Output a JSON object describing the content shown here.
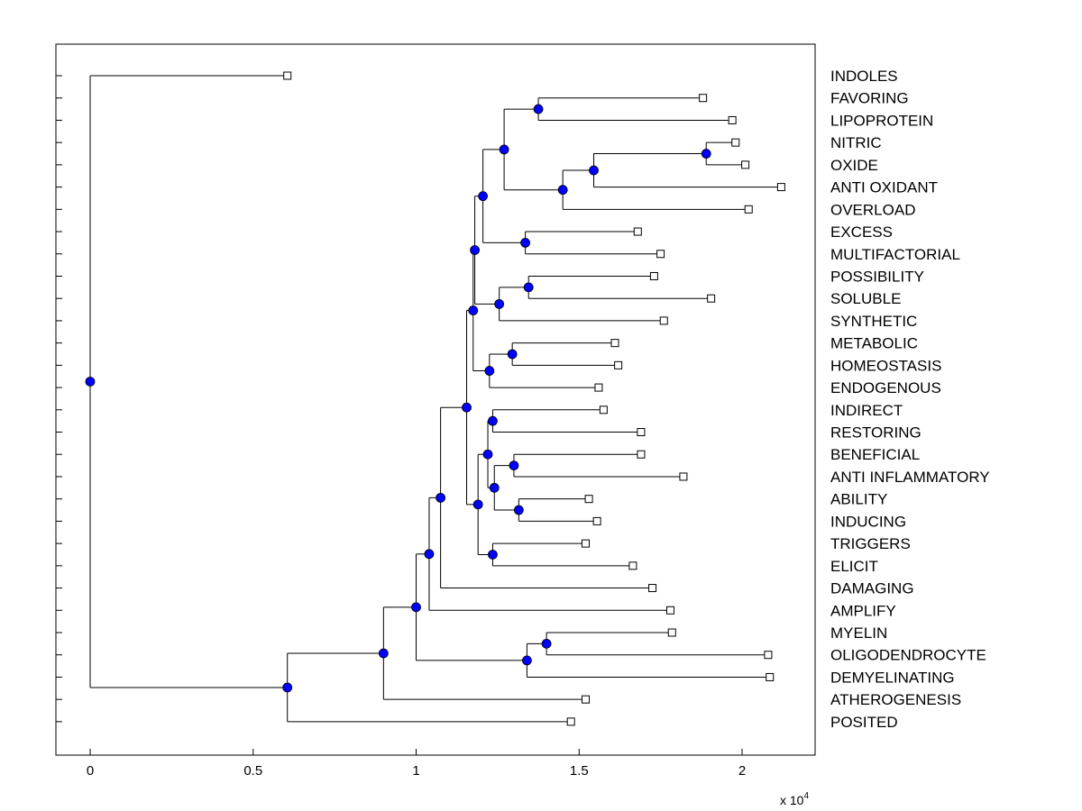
{
  "chart_data": {
    "type": "dendrogram",
    "orientation": "horizontal",
    "title": "",
    "xlabel": "",
    "ylabel": "",
    "xlim": [
      -1000,
      22500
    ],
    "x_ticks": [
      0,
      5000,
      10000,
      15000,
      20000
    ],
    "x_tick_labels": [
      "0",
      "0.5",
      "1",
      "1.5",
      "2"
    ],
    "x_multiplier_text": "x 10",
    "x_multiplier_exp": "4",
    "grid": false,
    "colors": {
      "node": "#0000ff",
      "leaf_fill": "#ffffff",
      "line": "#000000"
    },
    "leaves": [
      {
        "label": "INDOLES",
        "x": 6050
      },
      {
        "label": "FAVORING",
        "x": 18800
      },
      {
        "label": "LIPOPROTEIN",
        "x": 19700
      },
      {
        "label": "NITRIC",
        "x": 19800
      },
      {
        "label": "OXIDE",
        "x": 20100
      },
      {
        "label": "ANTI OXIDANT",
        "x": 21200
      },
      {
        "label": "OVERLOAD",
        "x": 20200
      },
      {
        "label": "EXCESS",
        "x": 16800
      },
      {
        "label": "MULTIFACTORIAL",
        "x": 17500
      },
      {
        "label": "POSSIBILITY",
        "x": 17300
      },
      {
        "label": "SOLUBLE",
        "x": 19050
      },
      {
        "label": "SYNTHETIC",
        "x": 17600
      },
      {
        "label": "METABOLIC",
        "x": 16100
      },
      {
        "label": "HOMEOSTASIS",
        "x": 16200
      },
      {
        "label": "ENDOGENOUS",
        "x": 15600
      },
      {
        "label": "INDIRECT",
        "x": 15750
      },
      {
        "label": "RESTORING",
        "x": 16900
      },
      {
        "label": "BENEFICIAL",
        "x": 16900
      },
      {
        "label": "ANTI INFLAMMATORY",
        "x": 18200
      },
      {
        "label": "ABILITY",
        "x": 15300
      },
      {
        "label": "INDUCING",
        "x": 15550
      },
      {
        "label": "TRIGGERS",
        "x": 15200
      },
      {
        "label": "ELICIT",
        "x": 16650
      },
      {
        "label": "DAMAGING",
        "x": 17250
      },
      {
        "label": "AMPLIFY",
        "x": 17800
      },
      {
        "label": "MYELIN",
        "x": 17850
      },
      {
        "label": "OLIGODENDROCYTE",
        "x": 20800
      },
      {
        "label": "DEMYELINATING",
        "x": 20850
      },
      {
        "label": "ATHEROGENESIS",
        "x": 15200
      },
      {
        "label": "POSITED",
        "x": 14750
      }
    ],
    "merges": [
      {
        "id": "a",
        "x": 13750,
        "children": [
          "L1",
          "L2"
        ]
      },
      {
        "id": "b",
        "x": 18900,
        "children": [
          "L3",
          "L4"
        ]
      },
      {
        "id": "c",
        "x": 15450,
        "children": [
          "b",
          "L5"
        ]
      },
      {
        "id": "d",
        "x": 14500,
        "children": [
          "c",
          "L6"
        ]
      },
      {
        "id": "e",
        "x": 12700,
        "children": [
          "a",
          "d"
        ]
      },
      {
        "id": "f",
        "x": 13350,
        "children": [
          "L7",
          "L8"
        ]
      },
      {
        "id": "g",
        "x": 12050,
        "children": [
          "e",
          "f"
        ]
      },
      {
        "id": "h",
        "x": 13450,
        "children": [
          "L9",
          "L10"
        ]
      },
      {
        "id": "i",
        "x": 12550,
        "children": [
          "h",
          "L11"
        ]
      },
      {
        "id": "j",
        "x": 11800,
        "children": [
          "g",
          "i"
        ]
      },
      {
        "id": "k",
        "x": 12950,
        "children": [
          "L12",
          "L13"
        ]
      },
      {
        "id": "l",
        "x": 12250,
        "children": [
          "k",
          "L14"
        ]
      },
      {
        "id": "m",
        "x": 11750,
        "children": [
          "j",
          "l"
        ]
      },
      {
        "id": "n",
        "x": 12350,
        "children": [
          "L15",
          "L16"
        ]
      },
      {
        "id": "o",
        "x": 13000,
        "children": [
          "L17",
          "L18"
        ]
      },
      {
        "id": "p",
        "x": 13150,
        "children": [
          "L19",
          "L20"
        ]
      },
      {
        "id": "q",
        "x": 12400,
        "children": [
          "o",
          "p"
        ]
      },
      {
        "id": "r",
        "x": 12200,
        "children": [
          "n",
          "q"
        ]
      },
      {
        "id": "s",
        "x": 12350,
        "children": [
          "L21",
          "L22"
        ]
      },
      {
        "id": "t",
        "x": 11900,
        "children": [
          "r",
          "s"
        ]
      },
      {
        "id": "u",
        "x": 11550,
        "children": [
          "m",
          "t"
        ]
      },
      {
        "id": "v",
        "x": 10750,
        "children": [
          "u",
          "L23"
        ]
      },
      {
        "id": "w",
        "x": 10400,
        "children": [
          "v",
          "L24"
        ]
      },
      {
        "id": "x",
        "x": 14000,
        "children": [
          "L25",
          "L26"
        ]
      },
      {
        "id": "y",
        "x": 13400,
        "children": [
          "x",
          "L27"
        ]
      },
      {
        "id": "z",
        "x": 10000,
        "children": [
          "w",
          "y"
        ]
      },
      {
        "id": "aa",
        "x": 9000,
        "children": [
          "z",
          "L28"
        ]
      },
      {
        "id": "bb",
        "x": 6050,
        "children": [
          "aa",
          "L29"
        ]
      },
      {
        "id": "root",
        "x": 0,
        "children": [
          "L0",
          "bb"
        ]
      }
    ]
  }
}
